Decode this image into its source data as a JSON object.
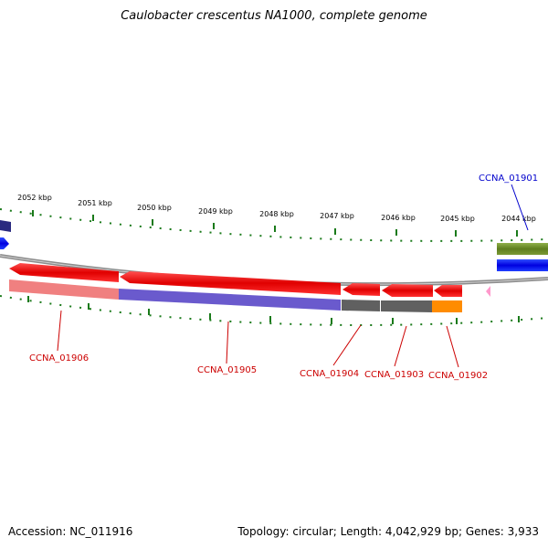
{
  "title": "Caulobacter crescentus NA1000, complete genome",
  "footer": {
    "accession": "Accession: NC_011916",
    "summary": "Topology: circular; Length: 4,042,929 bp; Genes: 3,933"
  },
  "scale": {
    "ticks": [
      "2052 kbp",
      "2051 kbp",
      "2050 kbp",
      "2049 kbp",
      "2048 kbp",
      "2047 kbp",
      "2046 kbp",
      "2045 kbp",
      "2044 kbp"
    ]
  },
  "genes": [
    {
      "label": "CCNA_01906",
      "color": "#cc0000"
    },
    {
      "label": "CCNA_01905",
      "color": "#cc0000"
    },
    {
      "label": "CCNA_01904",
      "color": "#cc0000"
    },
    {
      "label": "CCNA_01903",
      "color": "#cc0000"
    },
    {
      "label": "CCNA_01902",
      "color": "#cc0000"
    },
    {
      "label": "CCNA_01901",
      "color": "#0000cc"
    }
  ],
  "colors": {
    "reverse_strand": "#ff0000",
    "forward_strand": "#0000ff",
    "backbone": "#8c8c8c",
    "tick": "#1a7a1a",
    "cog_pink": "#f08080",
    "cog_purple": "#6a5acd",
    "cog_gray": "#606060",
    "cog_orange": "#ff8c00",
    "cog_olive": "#6b8e23"
  }
}
